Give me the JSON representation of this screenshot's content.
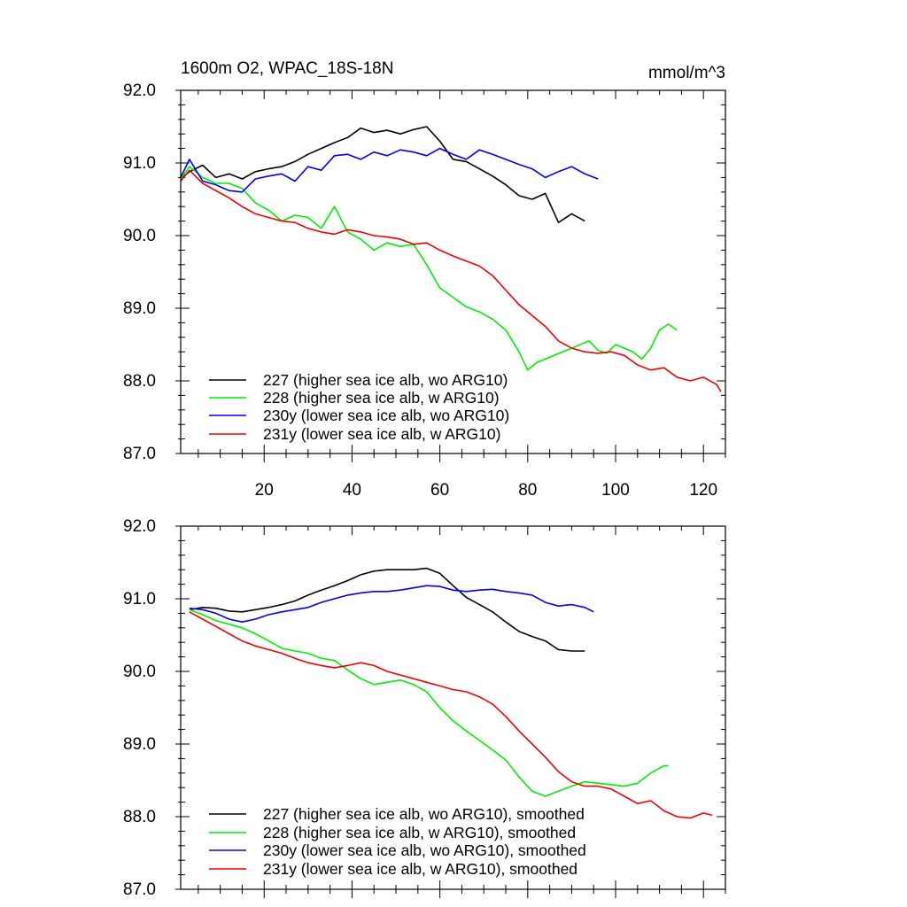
{
  "chart_data": [
    {
      "type": "line",
      "title": "1600m O2, WPAC_18S-18N",
      "units": "mmol/m^3",
      "xlabel": "",
      "ylabel": "",
      "xlim": [
        1,
        125
      ],
      "ylim": [
        87.0,
        92.0
      ],
      "x_ticks": [
        20,
        40,
        60,
        80,
        100,
        120
      ],
      "y_ticks": [
        "87.0",
        "88.0",
        "89.0",
        "90.0",
        "91.0",
        "92.0"
      ],
      "legend_position": "bottom-left",
      "series": [
        {
          "name": "227 (higher sea ice alb, wo ARG10)",
          "color": "#000000",
          "x": [
            1,
            3,
            6,
            9,
            12,
            15,
            18,
            21,
            24,
            27,
            30,
            33,
            36,
            39,
            42,
            45,
            48,
            51,
            54,
            57,
            60,
            63,
            66,
            69,
            72,
            75,
            78,
            81,
            84,
            87,
            90,
            93
          ],
          "y": [
            90.78,
            90.88,
            90.97,
            90.8,
            90.85,
            90.78,
            90.88,
            90.92,
            90.95,
            91.02,
            91.12,
            91.2,
            91.28,
            91.35,
            91.48,
            91.42,
            91.45,
            91.4,
            91.46,
            91.5,
            91.3,
            91.05,
            91.02,
            90.92,
            90.82,
            90.7,
            90.55,
            90.5,
            90.58,
            90.18,
            90.3,
            90.2
          ]
        },
        {
          "name": "228 (higher sea ice alb, w ARG10)",
          "color": "#00ee00",
          "x": [
            1,
            3,
            6,
            9,
            12,
            15,
            18,
            21,
            24,
            27,
            30,
            33,
            36,
            39,
            42,
            45,
            48,
            51,
            54,
            57,
            60,
            63,
            66,
            69,
            72,
            75,
            78,
            80,
            82,
            84,
            86,
            88,
            90,
            92,
            94,
            96,
            98,
            100,
            102,
            104,
            106,
            108,
            110,
            112,
            114
          ],
          "y": [
            90.78,
            90.95,
            90.8,
            90.72,
            90.72,
            90.65,
            90.45,
            90.35,
            90.2,
            90.28,
            90.25,
            90.1,
            90.4,
            90.05,
            89.95,
            89.8,
            89.9,
            89.85,
            89.88,
            89.6,
            89.28,
            89.15,
            89.02,
            88.95,
            88.85,
            88.7,
            88.4,
            88.15,
            88.25,
            88.3,
            88.35,
            88.4,
            88.45,
            88.5,
            88.55,
            88.42,
            88.38,
            88.5,
            88.45,
            88.4,
            88.3,
            88.45,
            88.7,
            88.78,
            88.7
          ]
        },
        {
          "name": "230y (lower sea ice alb, wo ARG10)",
          "color": "#0000ee",
          "x": [
            1,
            3,
            6,
            9,
            12,
            15,
            18,
            21,
            24,
            27,
            30,
            33,
            36,
            39,
            42,
            45,
            48,
            51,
            54,
            57,
            60,
            63,
            66,
            69,
            72,
            75,
            78,
            81,
            84,
            87,
            90,
            93,
            96
          ],
          "y": [
            90.8,
            91.05,
            90.75,
            90.7,
            90.62,
            90.6,
            90.78,
            90.82,
            90.85,
            90.75,
            90.95,
            90.9,
            91.1,
            91.12,
            91.05,
            91.15,
            91.1,
            91.18,
            91.15,
            91.1,
            91.2,
            91.12,
            91.05,
            91.18,
            91.12,
            91.05,
            90.98,
            90.92,
            90.8,
            90.88,
            90.95,
            90.85,
            90.78
          ]
        },
        {
          "name": "231y (lower sea ice alb, w ARG10)",
          "color": "#ee0000",
          "x": [
            1,
            3,
            6,
            9,
            12,
            15,
            18,
            21,
            24,
            27,
            30,
            33,
            36,
            39,
            42,
            45,
            48,
            51,
            54,
            57,
            60,
            63,
            66,
            69,
            72,
            75,
            78,
            81,
            84,
            87,
            90,
            93,
            96,
            99,
            102,
            105,
            108,
            111,
            114,
            117,
            120,
            123,
            124
          ],
          "y": [
            90.75,
            90.9,
            90.72,
            90.62,
            90.52,
            90.4,
            90.3,
            90.25,
            90.2,
            90.18,
            90.1,
            90.05,
            90.02,
            90.08,
            90.05,
            90.0,
            89.98,
            89.95,
            89.88,
            89.9,
            89.8,
            89.72,
            89.65,
            89.58,
            89.45,
            89.25,
            89.05,
            88.9,
            88.75,
            88.55,
            88.45,
            88.4,
            88.38,
            88.4,
            88.35,
            88.22,
            88.15,
            88.18,
            88.05,
            88.0,
            88.05,
            87.95,
            87.85
          ]
        }
      ]
    },
    {
      "type": "line",
      "title": "",
      "xlabel": "",
      "ylabel": "",
      "xlim": [
        1,
        125
      ],
      "ylim": [
        87.0,
        92.0
      ],
      "y_ticks": [
        "87.0",
        "88.0",
        "89.0",
        "90.0",
        "91.0",
        "92.0"
      ],
      "legend_position": "bottom-left",
      "series": [
        {
          "name": "227 (higher sea ice alb, wo ARG10), smoothed",
          "color": "#000000",
          "x": [
            3,
            6,
            9,
            12,
            15,
            18,
            21,
            24,
            27,
            30,
            33,
            36,
            39,
            42,
            45,
            48,
            51,
            54,
            57,
            60,
            63,
            66,
            69,
            72,
            75,
            78,
            81,
            84,
            87,
            90,
            93
          ],
          "y": [
            90.85,
            90.88,
            90.87,
            90.83,
            90.82,
            90.85,
            90.88,
            90.92,
            90.97,
            91.05,
            91.12,
            91.18,
            91.25,
            91.33,
            91.38,
            91.4,
            91.4,
            91.4,
            91.42,
            91.35,
            91.18,
            91.02,
            90.92,
            90.82,
            90.68,
            90.55,
            90.48,
            90.42,
            90.3,
            90.28,
            90.28
          ]
        },
        {
          "name": "228 (higher sea ice alb, w ARG10), smoothed",
          "color": "#00ee00",
          "x": [
            3,
            6,
            9,
            12,
            15,
            18,
            21,
            24,
            27,
            30,
            33,
            36,
            39,
            42,
            45,
            48,
            51,
            54,
            57,
            60,
            63,
            66,
            69,
            72,
            75,
            78,
            81,
            84,
            87,
            90,
            93,
            96,
            99,
            102,
            105,
            108,
            111,
            112
          ],
          "y": [
            90.85,
            90.78,
            90.7,
            90.65,
            90.6,
            90.52,
            90.42,
            90.32,
            90.28,
            90.25,
            90.18,
            90.15,
            90.02,
            89.9,
            89.82,
            89.85,
            89.88,
            89.82,
            89.72,
            89.5,
            89.32,
            89.18,
            89.05,
            88.92,
            88.78,
            88.55,
            88.35,
            88.28,
            88.35,
            88.42,
            88.48,
            88.46,
            88.44,
            88.42,
            88.46,
            88.6,
            88.7,
            88.7
          ]
        },
        {
          "name": "230y (lower sea ice alb, wo ARG10), smoothed",
          "color": "#0000ee",
          "x": [
            3,
            6,
            9,
            12,
            15,
            18,
            21,
            24,
            27,
            30,
            33,
            36,
            39,
            42,
            45,
            48,
            51,
            54,
            57,
            60,
            63,
            66,
            69,
            72,
            75,
            78,
            81,
            84,
            87,
            90,
            93,
            95
          ],
          "y": [
            90.87,
            90.85,
            90.8,
            90.72,
            90.68,
            90.72,
            90.78,
            90.82,
            90.85,
            90.88,
            90.95,
            91.0,
            91.05,
            91.08,
            91.1,
            91.1,
            91.12,
            91.15,
            91.18,
            91.17,
            91.12,
            91.1,
            91.12,
            91.13,
            91.1,
            91.08,
            91.05,
            90.95,
            90.9,
            90.92,
            90.88,
            90.82
          ]
        },
        {
          "name": "231y (lower sea ice alb, w ARG10), smoothed",
          "color": "#ee0000",
          "x": [
            3,
            6,
            9,
            12,
            15,
            18,
            21,
            24,
            27,
            30,
            33,
            36,
            39,
            42,
            45,
            48,
            51,
            54,
            57,
            60,
            63,
            66,
            69,
            72,
            75,
            78,
            81,
            84,
            87,
            90,
            93,
            96,
            99,
            102,
            105,
            108,
            111,
            114,
            117,
            120,
            122
          ],
          "y": [
            90.82,
            90.72,
            90.62,
            90.52,
            90.42,
            90.35,
            90.3,
            90.25,
            90.18,
            90.12,
            90.08,
            90.05,
            90.08,
            90.12,
            90.08,
            90.0,
            89.95,
            89.9,
            89.85,
            89.8,
            89.75,
            89.72,
            89.65,
            89.55,
            89.38,
            89.18,
            89.0,
            88.82,
            88.62,
            88.48,
            88.42,
            88.42,
            88.38,
            88.28,
            88.18,
            88.22,
            88.08,
            88.0,
            87.98,
            88.05,
            88.02
          ]
        }
      ]
    }
  ]
}
